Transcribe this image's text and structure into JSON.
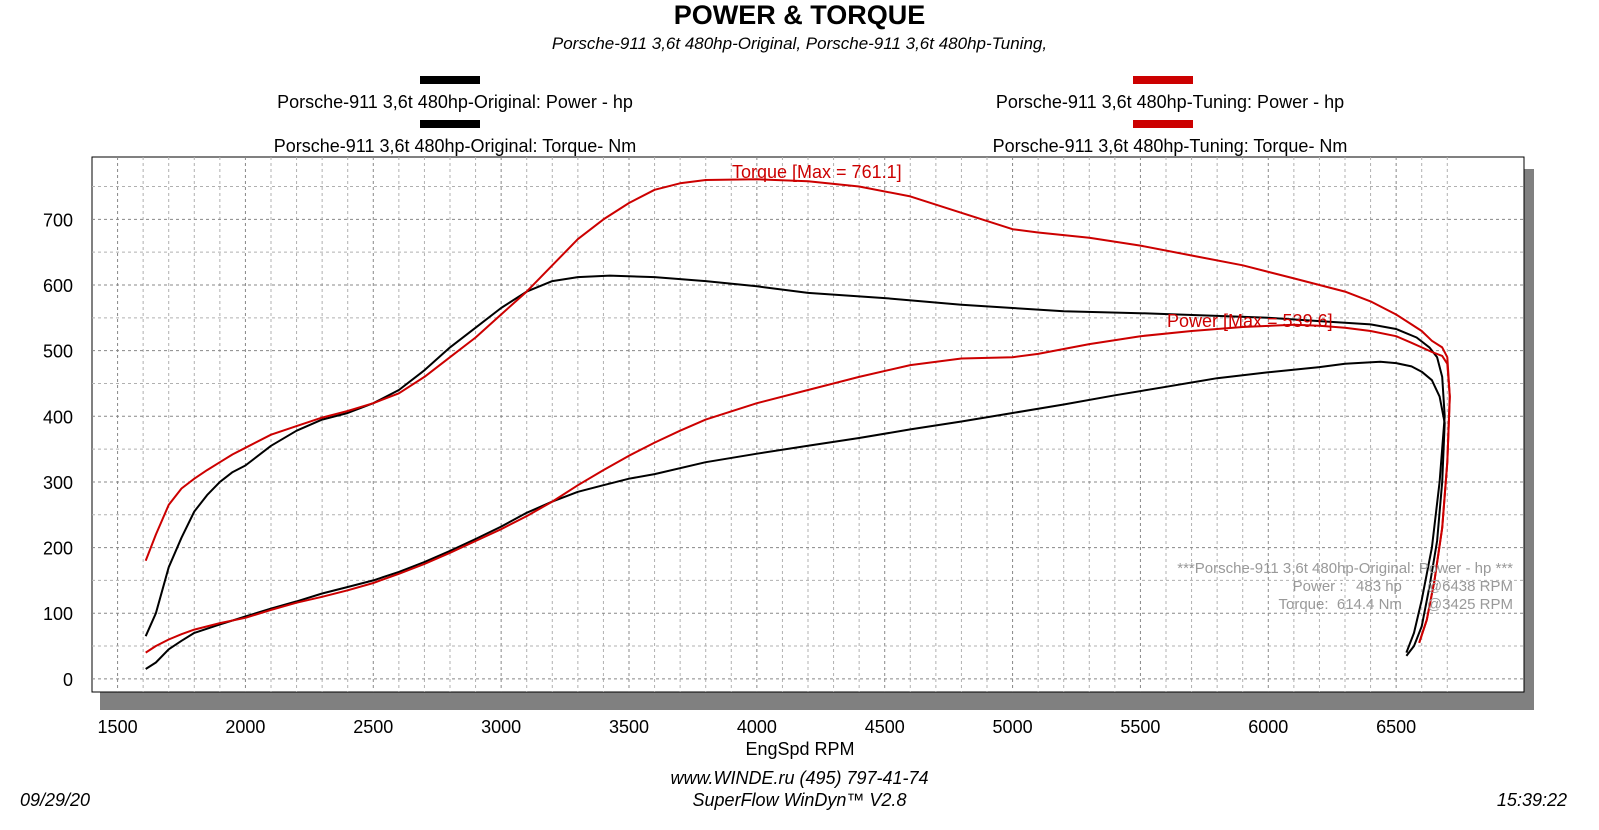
{
  "header": {
    "title": "POWER & TORQUE",
    "subtitle": "Porsche-911 3,6t 480hp-Original, Porsche-911 3,6t 480hp-Tuning,"
  },
  "legend": [
    {
      "label": "Porsche-911 3,6t 480hp-Original: Power -  hp",
      "color": "#000000"
    },
    {
      "label": "Porsche-911 3,6t 480hp-Original: Torque-  Nm",
      "color": "#000000"
    },
    {
      "label": "Porsche-911 3,6t 480hp-Tuning: Power -  hp",
      "color": "#cc0000"
    },
    {
      "label": "Porsche-911 3,6t 480hp-Tuning: Torque-  Nm",
      "color": "#cc0000"
    }
  ],
  "annotations": {
    "torque_max": "Torque [Max = 761.1]",
    "power_max": "Power  [Max = 539.6]",
    "info_title": "***Porsche-911 3,6t 480hp-Original: Power - hp  ***",
    "info_power": "Power :   483 hp      @6438 RPM",
    "info_torque": "Torque:  614.4 Nm      @3425 RPM"
  },
  "footer": {
    "url": "www.WINDE.ru  (495) 797-41-74",
    "software": "SuperFlow WinDyn™ V2.8",
    "date": "09/29/20",
    "time": "15:39:22"
  },
  "chart_data": {
    "type": "line",
    "title": "POWER & TORQUE",
    "xlabel": "EngSpd  RPM",
    "ylabel": "",
    "xlim": [
      1400,
      7000
    ],
    "ylim": [
      -20,
      795
    ],
    "x_ticks": [
      1500,
      2000,
      2500,
      3000,
      3500,
      4000,
      4500,
      5000,
      5500,
      6000,
      6500
    ],
    "y_ticks": [
      0,
      100,
      200,
      300,
      400,
      500,
      600,
      700
    ],
    "grid": true,
    "series": [
      {
        "name": "Porsche-911 3,6t 480hp-Original: Torque-  Nm",
        "color": "#000000",
        "x": [
          1610,
          1650,
          1700,
          1750,
          1800,
          1850,
          1900,
          1950,
          2000,
          2100,
          2200,
          2300,
          2400,
          2500,
          2600,
          2700,
          2800,
          2900,
          3000,
          3100,
          3200,
          3300,
          3425,
          3600,
          3800,
          4000,
          4200,
          4500,
          4800,
          5000,
          5200,
          5500,
          5800,
          6000,
          6200,
          6400,
          6500,
          6580,
          6630,
          6660,
          6680,
          6690,
          6670,
          6640,
          6600,
          6570,
          6540
        ],
        "y": [
          65,
          100,
          170,
          215,
          255,
          280,
          300,
          315,
          325,
          355,
          378,
          395,
          405,
          420,
          440,
          470,
          505,
          535,
          565,
          590,
          606,
          612,
          614.4,
          612,
          606,
          598,
          588,
          580,
          570,
          565,
          560,
          557,
          553,
          550,
          545,
          540,
          533,
          520,
          505,
          490,
          460,
          400,
          300,
          200,
          120,
          70,
          40
        ]
      },
      {
        "name": "Porsche-911 3,6t 480hp-Tuning: Torque-  Nm",
        "color": "#cc0000",
        "x": [
          1610,
          1650,
          1700,
          1750,
          1800,
          1850,
          1900,
          1950,
          2000,
          2100,
          2200,
          2300,
          2400,
          2500,
          2600,
          2700,
          2800,
          2900,
          3000,
          3100,
          3200,
          3300,
          3400,
          3500,
          3600,
          3700,
          3800,
          4000,
          4200,
          4400,
          4600,
          4800,
          5000,
          5100,
          5300,
          5500,
          5700,
          5900,
          6100,
          6300,
          6400,
          6500,
          6560,
          6600,
          6640,
          6680,
          6700,
          6710,
          6700,
          6680,
          6650,
          6620,
          6590
        ],
        "y": [
          180,
          220,
          265,
          290,
          305,
          318,
          330,
          342,
          352,
          372,
          385,
          398,
          408,
          420,
          435,
          460,
          490,
          520,
          555,
          590,
          630,
          670,
          700,
          725,
          745,
          755,
          760,
          761,
          758,
          750,
          735,
          710,
          685,
          680,
          672,
          660,
          645,
          630,
          610,
          590,
          575,
          555,
          540,
          530,
          515,
          505,
          490,
          430,
          330,
          230,
          150,
          90,
          55
        ]
      },
      {
        "name": "Porsche-911 3,6t 480hp-Original: Power -  hp",
        "color": "#000000",
        "x": [
          1610,
          1650,
          1700,
          1750,
          1800,
          1900,
          2000,
          2100,
          2200,
          2300,
          2400,
          2500,
          2600,
          2700,
          2800,
          2900,
          3000,
          3100,
          3200,
          3300,
          3400,
          3500,
          3600,
          3800,
          4000,
          4200,
          4400,
          4600,
          4800,
          5000,
          5200,
          5400,
          5600,
          5800,
          6000,
          6200,
          6300,
          6438,
          6500,
          6560,
          6600,
          6640,
          6670,
          6690,
          6680,
          6660,
          6630,
          6600,
          6570,
          6540
        ],
        "y": [
          15,
          25,
          45,
          58,
          70,
          83,
          95,
          107,
          118,
          130,
          140,
          150,
          163,
          178,
          195,
          213,
          232,
          253,
          270,
          285,
          295,
          305,
          312,
          330,
          343,
          355,
          367,
          380,
          392,
          405,
          418,
          432,
          445,
          458,
          467,
          475,
          480,
          483,
          481,
          476,
          468,
          455,
          430,
          390,
          300,
          210,
          140,
          80,
          50,
          35
        ]
      },
      {
        "name": "Porsche-911 3,6t 480hp-Tuning: Power -  hp",
        "color": "#cc0000",
        "x": [
          1610,
          1650,
          1700,
          1750,
          1800,
          1900,
          2000,
          2100,
          2200,
          2300,
          2400,
          2500,
          2600,
          2700,
          2800,
          2900,
          3000,
          3100,
          3200,
          3300,
          3400,
          3500,
          3600,
          3700,
          3800,
          4000,
          4200,
          4400,
          4600,
          4800,
          5000,
          5100,
          5300,
          5500,
          5700,
          5900,
          6100,
          6200,
          6300,
          6400,
          6500,
          6560,
          6600,
          6640,
          6680,
          6700,
          6710,
          6700,
          6680,
          6650,
          6620,
          6590
        ],
        "y": [
          40,
          50,
          60,
          68,
          75,
          85,
          93,
          105,
          116,
          125,
          135,
          146,
          160,
          175,
          192,
          210,
          228,
          248,
          270,
          295,
          318,
          340,
          360,
          378,
          395,
          420,
          440,
          460,
          478,
          488,
          490,
          495,
          510,
          522,
          530,
          536,
          539.6,
          538,
          535,
          530,
          522,
          512,
          505,
          498,
          492,
          480,
          430,
          330,
          230,
          150,
          90,
          55
        ]
      }
    ]
  }
}
